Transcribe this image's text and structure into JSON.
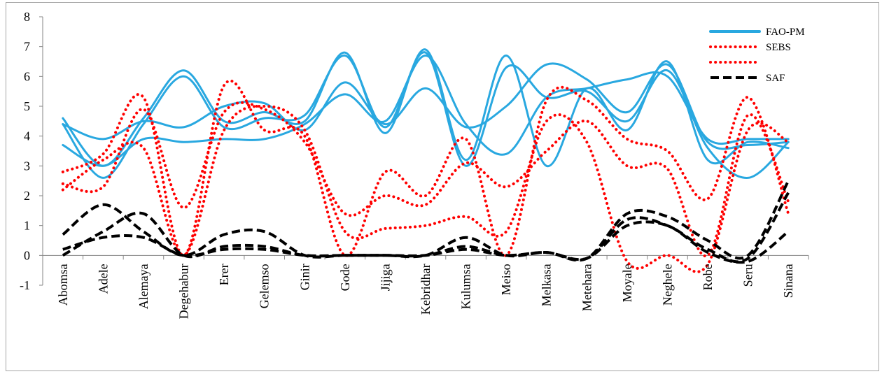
{
  "chart_data": {
    "type": "line",
    "title": "",
    "xlabel": "",
    "ylabel": "",
    "ylim": [
      -1,
      8
    ],
    "yticks": [
      -1,
      0,
      1,
      2,
      3,
      4,
      5,
      6,
      7,
      8
    ],
    "categories": [
      "Abomsa",
      "Adele",
      "Alemaya",
      "Degehabur",
      "Erer",
      "Gelemso",
      "Ginir",
      "Gode",
      "Jijiga",
      "Kebridhar",
      "Kulumsa",
      "Meiso",
      "Melkasa",
      "Metehara",
      "Moyale",
      "Neghele",
      "Robe",
      "Seru",
      "Sinana"
    ],
    "legend_position": "top-right",
    "grid": false,
    "series": [
      {
        "name": "FAO-PM",
        "group": "FAO-PM",
        "color": "#29a8e0",
        "style": "solid",
        "show_legend": true,
        "values": [
          4.6,
          3.0,
          4.6,
          6.2,
          4.5,
          4.8,
          4.5,
          6.8,
          4.1,
          6.9,
          3.2,
          6.7,
          3.0,
          5.6,
          4.2,
          6.5,
          3.2,
          3.8,
          3.6
        ]
      },
      {
        "name": "",
        "group": "FAO-PM",
        "color": "#29a8e0",
        "style": "solid",
        "show_legend": false,
        "values": [
          4.4,
          2.6,
          4.4,
          6.0,
          4.3,
          4.6,
          4.7,
          6.7,
          4.3,
          6.8,
          3.0,
          6.3,
          5.3,
          5.5,
          4.5,
          6.2,
          3.6,
          2.6,
          3.8
        ]
      },
      {
        "name": "",
        "group": "FAO-PM",
        "color": "#29a8e0",
        "style": "solid",
        "show_legend": false,
        "values": [
          4.4,
          3.9,
          4.5,
          4.3,
          5.0,
          5.1,
          4.2,
          5.8,
          4.4,
          5.6,
          4.3,
          5.0,
          6.4,
          5.9,
          4.8,
          6.4,
          3.8,
          3.7,
          3.8
        ]
      },
      {
        "name": "",
        "group": "FAO-PM",
        "color": "#29a8e0",
        "style": "solid",
        "show_legend": false,
        "values": [
          3.7,
          3.0,
          3.9,
          3.8,
          3.9,
          3.9,
          4.4,
          5.4,
          4.5,
          6.7,
          4.4,
          3.4,
          5.3,
          5.6,
          5.9,
          6.0,
          3.9,
          3.9,
          3.9
        ]
      },
      {
        "name": "SEBS",
        "group": "SEBS",
        "color": "#ff0000",
        "style": "dotted",
        "show_legend": true,
        "values": [
          2.8,
          3.4,
          5.3,
          0.0,
          5.7,
          4.2,
          4.0,
          0.0,
          2.8,
          2.0,
          3.9,
          0.0,
          5.2,
          5.2,
          3.9,
          3.5,
          1.9,
          5.3,
          1.4
        ]
      },
      {
        "name": "",
        "group": "SEBS",
        "color": "#ff0000",
        "style": "dotted",
        "show_legend": true,
        "values": [
          2.4,
          2.3,
          4.9,
          1.6,
          4.8,
          4.9,
          3.8,
          1.4,
          2.0,
          1.7,
          3.1,
          2.3,
          3.5,
          4.5,
          3.0,
          2.9,
          0.0,
          4.7,
          1.8
        ]
      },
      {
        "name": "",
        "group": "SEBS",
        "color": "#ff0000",
        "style": "dotted",
        "show_legend": false,
        "values": [
          2.2,
          3.2,
          3.6,
          0.0,
          4.2,
          5.0,
          4.2,
          0.8,
          0.9,
          1.0,
          1.3,
          0.8,
          4.5,
          3.8,
          -0.2,
          0.0,
          -0.3,
          4.2,
          3.8
        ]
      },
      {
        "name": "SAF",
        "group": "SAF",
        "color": "#000000",
        "style": "dashed",
        "show_legend": true,
        "values": [
          0.7,
          1.7,
          0.8,
          0.0,
          0.7,
          0.8,
          0.0,
          0.0,
          0.0,
          0.0,
          0.6,
          0.0,
          0.1,
          -0.1,
          1.4,
          1.3,
          0.5,
          0.0,
          2.5
        ]
      },
      {
        "name": "",
        "group": "SAF",
        "color": "#000000",
        "style": "dashed",
        "show_legend": false,
        "values": [
          0.0,
          0.8,
          1.4,
          0.0,
          0.3,
          0.3,
          0.0,
          0.0,
          0.0,
          0.0,
          0.3,
          0.0,
          0.1,
          -0.1,
          1.2,
          1.0,
          0.2,
          -0.1,
          2.1
        ]
      },
      {
        "name": "",
        "group": "SAF",
        "color": "#000000",
        "style": "dashed",
        "show_legend": false,
        "values": [
          0.2,
          0.6,
          0.6,
          0.0,
          0.2,
          0.2,
          0.0,
          0.0,
          0.0,
          0.0,
          0.2,
          0.0,
          0.1,
          -0.1,
          1.0,
          1.0,
          0.1,
          -0.2,
          0.8
        ]
      }
    ]
  }
}
